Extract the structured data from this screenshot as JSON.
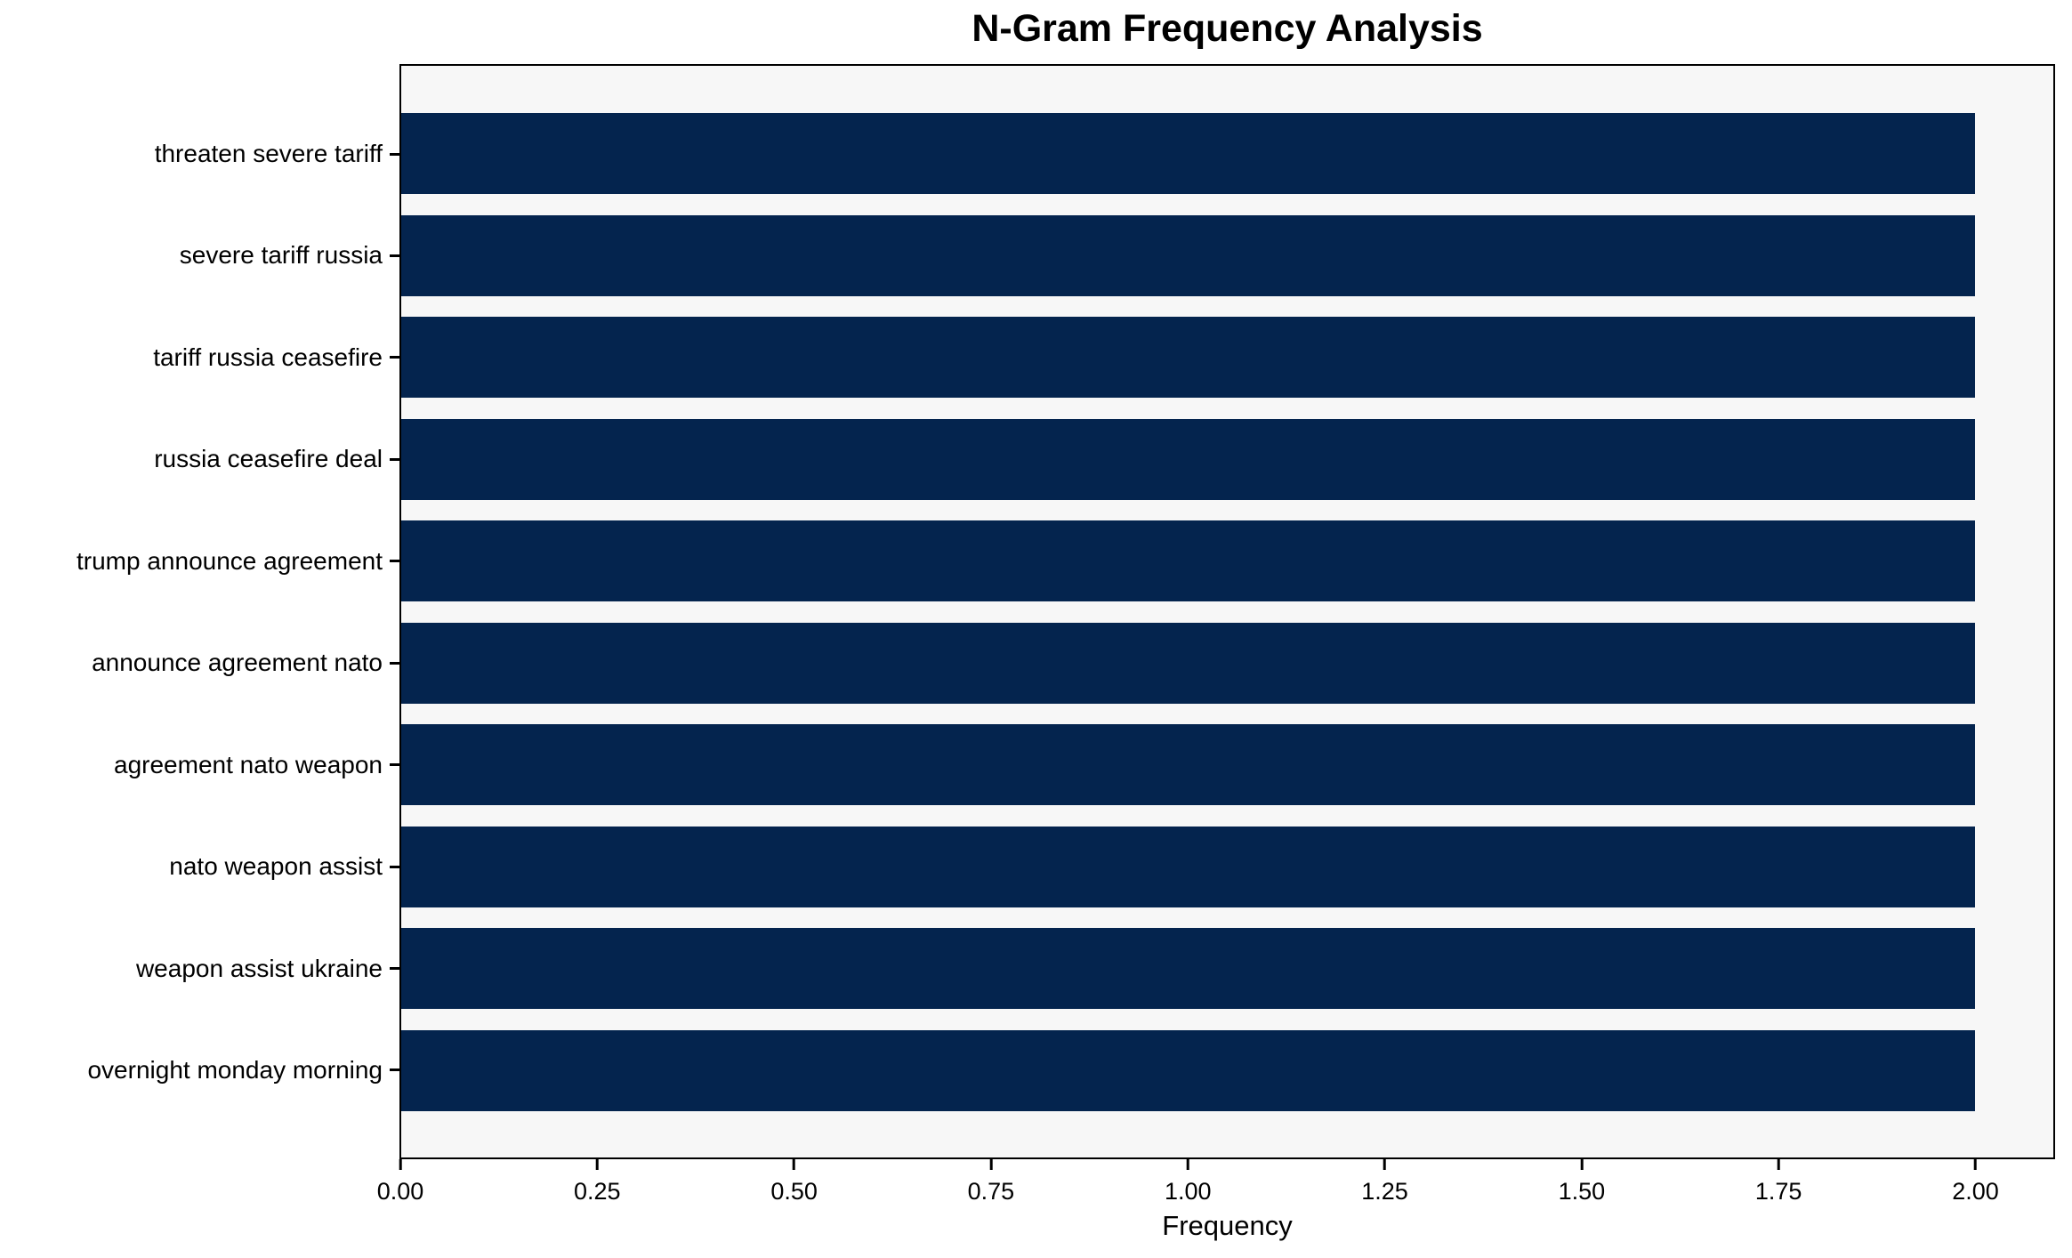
{
  "chart_data": {
    "type": "bar",
    "orientation": "horizontal",
    "title": "N-Gram Frequency Analysis",
    "categories": [
      "threaten severe tariff",
      "severe tariff russia",
      "tariff russia ceasefire",
      "russia ceasefire deal",
      "trump announce agreement",
      "announce agreement nato",
      "agreement nato weapon",
      "nato weapon assist",
      "weapon assist ukraine",
      "overnight monday morning"
    ],
    "values": [
      2,
      2,
      2,
      2,
      2,
      2,
      2,
      2,
      2,
      2
    ],
    "xlabel": "Frequency",
    "ylabel": "",
    "xlim": [
      0,
      2.1
    ],
    "xticks": [
      {
        "value": 0.0,
        "label": "0.00"
      },
      {
        "value": 0.25,
        "label": "0.25"
      },
      {
        "value": 0.5,
        "label": "0.50"
      },
      {
        "value": 0.75,
        "label": "0.75"
      },
      {
        "value": 1.0,
        "label": "1.00"
      },
      {
        "value": 1.25,
        "label": "1.25"
      },
      {
        "value": 1.5,
        "label": "1.50"
      },
      {
        "value": 1.75,
        "label": "1.75"
      },
      {
        "value": 2.0,
        "label": "2.00"
      }
    ],
    "grid": false,
    "legend": null,
    "colors": {
      "bar": "#04244e",
      "plot_background": "#f7f7f7",
      "figure_background": "#ffffff",
      "frame": "#000000",
      "text": "#000000"
    }
  }
}
